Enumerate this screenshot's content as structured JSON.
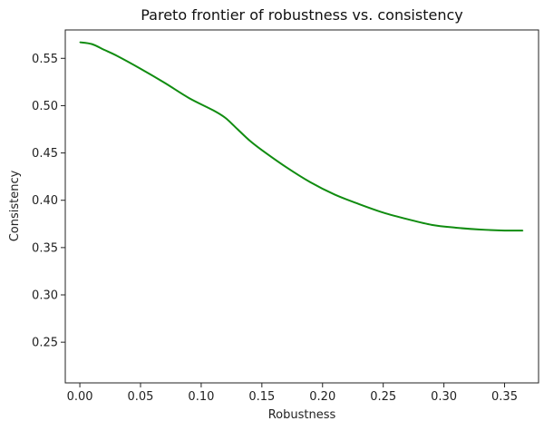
{
  "chart_data": {
    "type": "line",
    "title": "Pareto frontier of robustness vs. consistency",
    "xlabel": "Robustness",
    "ylabel": "Consistency",
    "xlim": [
      -0.012,
      0.378
    ],
    "ylim": [
      0.207,
      0.58
    ],
    "xticks": [
      "0.00",
      "0.05",
      "0.10",
      "0.15",
      "0.20",
      "0.25",
      "0.30",
      "0.35"
    ],
    "yticks": [
      "0.25",
      "0.30",
      "0.35",
      "0.40",
      "0.45",
      "0.50",
      "0.55"
    ],
    "grid": false,
    "series": [
      {
        "color": "#108c10",
        "x": [
          0.0,
          0.01,
          0.02,
          0.03,
          0.05,
          0.07,
          0.09,
          0.11,
          0.12,
          0.13,
          0.14,
          0.15,
          0.17,
          0.19,
          0.21,
          0.23,
          0.25,
          0.27,
          0.29,
          0.31,
          0.33,
          0.35,
          0.365
        ],
        "y": [
          0.567,
          0.565,
          0.559,
          0.553,
          0.539,
          0.524,
          0.508,
          0.495,
          0.487,
          0.475,
          0.463,
          0.453,
          0.435,
          0.419,
          0.406,
          0.396,
          0.387,
          0.38,
          0.374,
          0.371,
          0.369,
          0.368,
          0.368
        ]
      }
    ]
  }
}
